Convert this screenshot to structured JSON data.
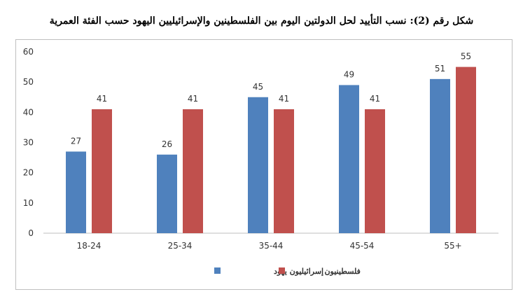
{
  "title": "شكل رقم (2): نسب التأييد لحل الدولتين اليوم بين الفلسطينين والإسرائيليين اليهود حسب الفئة العمرية",
  "chart_data": {
    "type": "bar",
    "categories": [
      "18-24",
      "25-34",
      "35-44",
      "45-54",
      "55+"
    ],
    "series": [
      {
        "name": "إسرائيليون يهود",
        "values": [
          27,
          26,
          45,
          49,
          51
        ],
        "color": "#4f81bd"
      },
      {
        "name": "فلسطينيون",
        "values": [
          41,
          41,
          41,
          41,
          55
        ],
        "color": "#c0504d"
      }
    ],
    "ylim": [
      0,
      60
    ],
    "yticks": [
      0,
      10,
      20,
      30,
      40,
      50,
      60
    ],
    "grid": false,
    "legend_position": "bottom",
    "data_labels": true
  }
}
